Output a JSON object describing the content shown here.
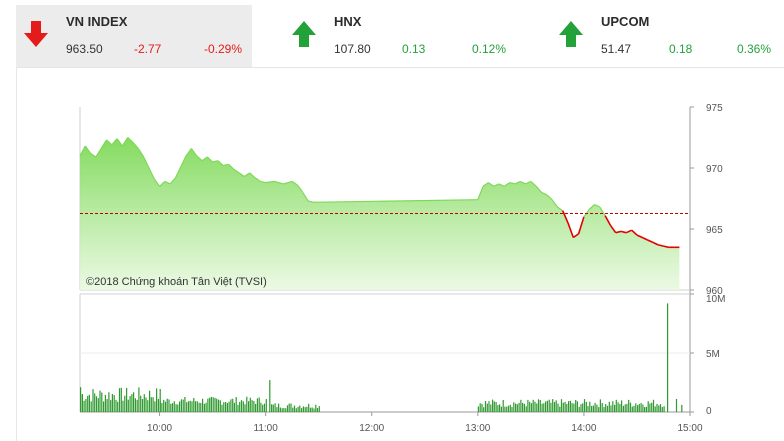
{
  "indices": [
    {
      "name": "VN INDEX",
      "value": "963.50",
      "change": "-2.77",
      "pct": "-0.29%",
      "direction": "down",
      "color": "#e31b1b",
      "arrow_icon": "arrow-down-icon"
    },
    {
      "name": "HNX",
      "value": "107.80",
      "change": "0.13",
      "pct": "0.12%",
      "direction": "up",
      "color": "#23a23a",
      "arrow_icon": "arrow-up-icon"
    },
    {
      "name": "UPCOM",
      "value": "51.47",
      "change": "0.18",
      "pct": "0.36%",
      "direction": "up",
      "color": "#23a23a",
      "arrow_icon": "arrow-up-icon"
    }
  ],
  "chart_data": [
    {
      "type": "area",
      "copyright": "©2018 Chứng khoán Tân Việt (TVSI)",
      "reference": 966.27,
      "ylim": [
        960,
        975
      ],
      "yticks": [
        "960",
        "965",
        "970",
        "975"
      ],
      "xlim": [
        "09:15",
        "15:00"
      ],
      "colors": {
        "above": "#7ed957",
        "below": "#e00000",
        "reference": "#c00000"
      },
      "series": [
        {
          "points": [
            [
              "09:15",
              971.0
            ],
            [
              "09:18",
              971.8
            ],
            [
              "09:21",
              971.2
            ],
            [
              "09:24",
              970.9
            ],
            [
              "09:27",
              971.6
            ],
            [
              "09:30",
              972.3
            ],
            [
              "09:33",
              971.9
            ],
            [
              "09:36",
              972.4
            ],
            [
              "09:39",
              971.8
            ],
            [
              "09:42",
              972.5
            ],
            [
              "09:45",
              972.1
            ],
            [
              "09:48",
              971.6
            ],
            [
              "09:51",
              970.9
            ],
            [
              "09:54",
              970.0
            ],
            [
              "09:57",
              969.1
            ],
            [
              "10:00",
              968.5
            ],
            [
              "10:03",
              968.9
            ],
            [
              "10:06",
              968.7
            ],
            [
              "10:09",
              969.2
            ],
            [
              "10:12",
              970.1
            ],
            [
              "10:15",
              971.0
            ],
            [
              "10:18",
              971.6
            ],
            [
              "10:21",
              971.0
            ],
            [
              "10:24",
              970.6
            ],
            [
              "10:27",
              970.9
            ],
            [
              "10:30",
              970.5
            ],
            [
              "10:33",
              970.6
            ],
            [
              "10:36",
              970.2
            ],
            [
              "10:39",
              970.3
            ],
            [
              "10:42",
              969.9
            ],
            [
              "10:45",
              969.6
            ],
            [
              "10:48",
              969.3
            ],
            [
              "10:51",
              969.6
            ],
            [
              "10:54",
              969.2
            ],
            [
              "10:57",
              968.9
            ],
            [
              "11:00",
              968.8
            ],
            [
              "11:05",
              968.9
            ],
            [
              "11:10",
              968.7
            ],
            [
              "11:15",
              968.9
            ],
            [
              "11:18",
              968.6
            ],
            [
              "11:21",
              968.0
            ],
            [
              "11:24",
              967.3
            ],
            [
              "11:27",
              967.2
            ],
            [
              "11:30",
              967.2
            ],
            [
              "13:00",
              967.4
            ],
            [
              "13:03",
              968.5
            ],
            [
              "13:06",
              968.8
            ],
            [
              "13:09",
              968.5
            ],
            [
              "13:12",
              968.7
            ],
            [
              "13:15",
              968.5
            ],
            [
              "13:18",
              968.8
            ],
            [
              "13:21",
              968.7
            ],
            [
              "13:24",
              968.9
            ],
            [
              "13:27",
              968.7
            ],
            [
              "13:30",
              968.9
            ],
            [
              "13:33",
              968.5
            ],
            [
              "13:36",
              968.0
            ],
            [
              "13:39",
              967.8
            ],
            [
              "13:42",
              967.4
            ],
            [
              "13:45",
              966.8
            ],
            [
              "13:48",
              966.5
            ],
            [
              "13:51",
              965.5
            ],
            [
              "13:54",
              964.3
            ],
            [
              "13:57",
              964.6
            ],
            [
              "14:00",
              966.0
            ],
            [
              "14:03",
              966.6
            ],
            [
              "14:06",
              967.0
            ],
            [
              "14:09",
              966.8
            ],
            [
              "14:12",
              966.1
            ],
            [
              "14:15",
              965.3
            ],
            [
              "14:18",
              964.7
            ],
            [
              "14:21",
              964.8
            ],
            [
              "14:24",
              964.7
            ],
            [
              "14:27",
              964.9
            ],
            [
              "14:30",
              964.5
            ],
            [
              "14:33",
              964.3
            ],
            [
              "14:36",
              964.1
            ],
            [
              "14:39",
              963.9
            ],
            [
              "14:42",
              963.7
            ],
            [
              "14:45",
              963.6
            ],
            [
              "14:48",
              963.5
            ],
            [
              "14:51",
              963.5
            ],
            [
              "14:54",
              963.5
            ]
          ]
        }
      ]
    },
    {
      "type": "bar",
      "ylim": [
        0,
        10
      ],
      "yticks": [
        "0",
        "5M",
        "10M"
      ],
      "xticks": [
        "10:00",
        "11:00",
        "12:00",
        "13:00",
        "14:00",
        "15:00"
      ],
      "color": "#2f9a2f",
      "series": [
        {
          "name": "",
          "windows": [
            {
              "start": "09:15",
              "end": "10:00",
              "min": 0.8,
              "max": 2.1,
              "spikes": [
                [
                  "09:15",
                  2.1
                ]
              ]
            },
            {
              "start": "10:00",
              "end": "11:00",
              "min": 0.6,
              "max": 1.3,
              "spikes": [
                [
                  "11:02",
                  2.7
                ]
              ]
            },
            {
              "start": "11:03",
              "end": "11:30",
              "min": 0.3,
              "max": 0.8,
              "spikes": []
            },
            {
              "start": "13:00",
              "end": "14:45",
              "min": 0.4,
              "max": 1.1,
              "spikes": []
            }
          ],
          "spikes": [
            [
              "14:47",
              9.2
            ],
            [
              "14:52",
              1.1
            ],
            [
              "14:55",
              0.6
            ]
          ]
        }
      ]
    }
  ]
}
